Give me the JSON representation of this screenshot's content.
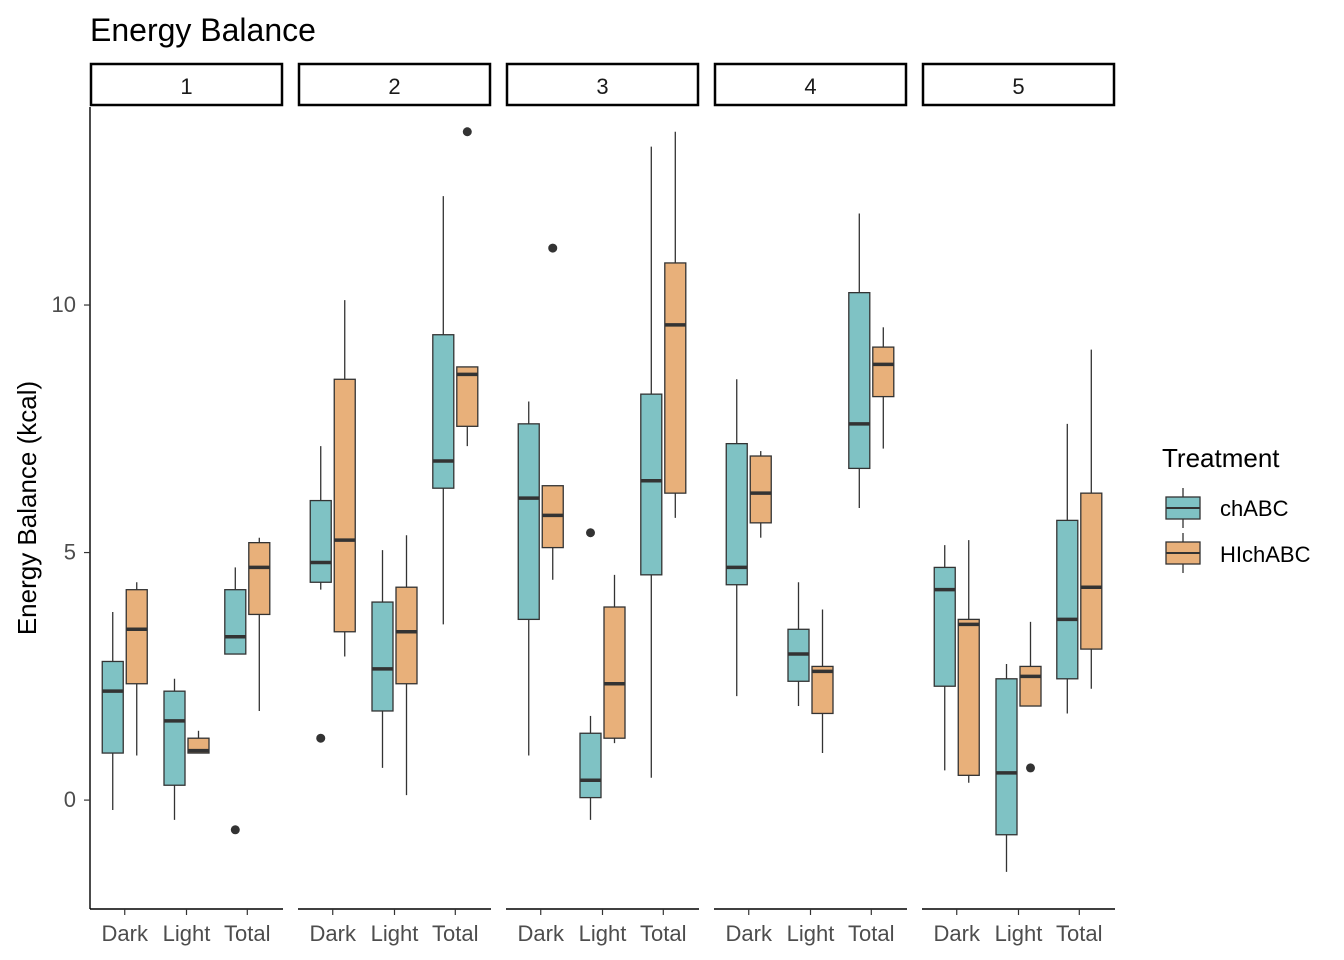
{
  "chart_data": {
    "type": "boxplot",
    "title": "Energy Balance",
    "ylabel": "Energy Balance (kcal)",
    "xlabel": "",
    "ylim": [
      -2.2,
      14.0
    ],
    "yticks": [
      0,
      5,
      10
    ],
    "facets": [
      "1",
      "2",
      "3",
      "4",
      "5"
    ],
    "categories": [
      "Dark",
      "Light",
      "Total"
    ],
    "legend": {
      "title": "Treatment",
      "position": "right"
    },
    "series": [
      {
        "name": "chABC",
        "color": "#7FC2C4"
      },
      {
        "name": "HIchABC",
        "color": "#E8B07A"
      }
    ],
    "boxes": [
      {
        "facet": "1",
        "category": "Dark",
        "series": "chABC",
        "min": -0.2,
        "q1": 0.95,
        "median": 2.2,
        "q3": 2.8,
        "max": 3.8,
        "outliers": []
      },
      {
        "facet": "1",
        "category": "Dark",
        "series": "HIchABC",
        "min": 0.9,
        "q1": 2.35,
        "median": 3.45,
        "q3": 4.25,
        "max": 4.4,
        "outliers": []
      },
      {
        "facet": "1",
        "category": "Light",
        "series": "chABC",
        "min": -0.4,
        "q1": 0.3,
        "median": 1.6,
        "q3": 2.2,
        "max": 2.45,
        "outliers": []
      },
      {
        "facet": "1",
        "category": "Light",
        "series": "HIchABC",
        "min": 0.95,
        "q1": 0.95,
        "median": 1.0,
        "q3": 1.25,
        "max": 1.4,
        "outliers": []
      },
      {
        "facet": "1",
        "category": "Total",
        "series": "chABC",
        "min": 2.95,
        "q1": 2.95,
        "median": 3.3,
        "q3": 4.25,
        "max": 4.7,
        "outliers": [
          -0.6
        ]
      },
      {
        "facet": "1",
        "category": "Total",
        "series": "HIchABC",
        "min": 1.8,
        "q1": 3.75,
        "median": 4.7,
        "q3": 5.2,
        "max": 5.3,
        "outliers": []
      },
      {
        "facet": "2",
        "category": "Dark",
        "series": "chABC",
        "min": 4.25,
        "q1": 4.4,
        "median": 4.8,
        "q3": 6.05,
        "max": 7.15,
        "outliers": [
          1.25
        ]
      },
      {
        "facet": "2",
        "category": "Dark",
        "series": "HIchABC",
        "min": 2.9,
        "q1": 3.4,
        "median": 5.25,
        "q3": 8.5,
        "max": 10.1,
        "outliers": []
      },
      {
        "facet": "2",
        "category": "Light",
        "series": "chABC",
        "min": 0.65,
        "q1": 1.8,
        "median": 2.65,
        "q3": 4.0,
        "max": 5.05,
        "outliers": []
      },
      {
        "facet": "2",
        "category": "Light",
        "series": "HIchABC",
        "min": 0.1,
        "q1": 2.35,
        "median": 3.4,
        "q3": 4.3,
        "max": 5.35,
        "outliers": []
      },
      {
        "facet": "2",
        "category": "Total",
        "series": "chABC",
        "min": 3.55,
        "q1": 6.3,
        "median": 6.85,
        "q3": 9.4,
        "max": 12.2,
        "outliers": []
      },
      {
        "facet": "2",
        "category": "Total",
        "series": "HIchABC",
        "min": 7.15,
        "q1": 7.55,
        "median": 8.6,
        "q3": 8.75,
        "max": 8.75,
        "outliers": [
          13.5
        ]
      },
      {
        "facet": "3",
        "category": "Dark",
        "series": "chABC",
        "min": 0.9,
        "q1": 3.65,
        "median": 6.1,
        "q3": 7.6,
        "max": 8.05,
        "outliers": []
      },
      {
        "facet": "3",
        "category": "Dark",
        "series": "HIchABC",
        "min": 4.45,
        "q1": 5.1,
        "median": 5.75,
        "q3": 6.35,
        "max": 6.35,
        "outliers": [
          11.15
        ]
      },
      {
        "facet": "3",
        "category": "Light",
        "series": "chABC",
        "min": -0.4,
        "q1": 0.05,
        "median": 0.4,
        "q3": 1.35,
        "max": 1.7,
        "outliers": [
          5.4
        ]
      },
      {
        "facet": "3",
        "category": "Light",
        "series": "HIchABC",
        "min": 1.15,
        "q1": 1.25,
        "median": 2.35,
        "q3": 3.9,
        "max": 4.55,
        "outliers": []
      },
      {
        "facet": "3",
        "category": "Total",
        "series": "chABC",
        "min": 0.45,
        "q1": 4.55,
        "median": 6.45,
        "q3": 8.2,
        "max": 13.2,
        "outliers": []
      },
      {
        "facet": "3",
        "category": "Total",
        "series": "HIchABC",
        "min": 5.7,
        "q1": 6.2,
        "median": 9.6,
        "q3": 10.85,
        "max": 13.5,
        "outliers": []
      },
      {
        "facet": "4",
        "category": "Dark",
        "series": "chABC",
        "min": 2.1,
        "q1": 4.35,
        "median": 4.7,
        "q3": 7.2,
        "max": 8.5,
        "outliers": []
      },
      {
        "facet": "4",
        "category": "Dark",
        "series": "HIchABC",
        "min": 5.3,
        "q1": 5.6,
        "median": 6.2,
        "q3": 6.95,
        "max": 7.05,
        "outliers": []
      },
      {
        "facet": "4",
        "category": "Light",
        "series": "chABC",
        "min": 1.9,
        "q1": 2.4,
        "median": 2.95,
        "q3": 3.45,
        "max": 4.4,
        "outliers": []
      },
      {
        "facet": "4",
        "category": "Light",
        "series": "HIchABC",
        "min": 0.95,
        "q1": 1.75,
        "median": 2.6,
        "q3": 2.7,
        "max": 3.85,
        "outliers": []
      },
      {
        "facet": "4",
        "category": "Total",
        "series": "chABC",
        "min": 5.9,
        "q1": 6.7,
        "median": 7.6,
        "q3": 10.25,
        "max": 11.85,
        "outliers": []
      },
      {
        "facet": "4",
        "category": "Total",
        "series": "HIchABC",
        "min": 7.1,
        "q1": 8.15,
        "median": 8.8,
        "q3": 9.15,
        "max": 9.55,
        "outliers": []
      },
      {
        "facet": "5",
        "category": "Dark",
        "series": "chABC",
        "min": 0.6,
        "q1": 2.3,
        "median": 4.25,
        "q3": 4.7,
        "max": 5.15,
        "outliers": []
      },
      {
        "facet": "5",
        "category": "Dark",
        "series": "HIchABC",
        "min": 0.35,
        "q1": 0.5,
        "median": 3.55,
        "q3": 3.65,
        "max": 5.25,
        "outliers": []
      },
      {
        "facet": "5",
        "category": "Light",
        "series": "chABC",
        "min": -1.45,
        "q1": -0.7,
        "median": 0.55,
        "q3": 2.45,
        "max": 2.75,
        "outliers": []
      },
      {
        "facet": "5",
        "category": "Light",
        "series": "HIchABC",
        "min": 1.9,
        "q1": 1.9,
        "median": 2.5,
        "q3": 2.7,
        "max": 3.6,
        "outliers": [
          0.65
        ]
      },
      {
        "facet": "5",
        "category": "Total",
        "series": "chABC",
        "min": 1.75,
        "q1": 2.45,
        "median": 3.65,
        "q3": 5.65,
        "max": 7.6,
        "outliers": []
      },
      {
        "facet": "5",
        "category": "Total",
        "series": "HIchABC",
        "min": 2.25,
        "q1": 3.05,
        "median": 4.3,
        "q3": 6.2,
        "max": 9.1,
        "outliers": []
      }
    ]
  }
}
